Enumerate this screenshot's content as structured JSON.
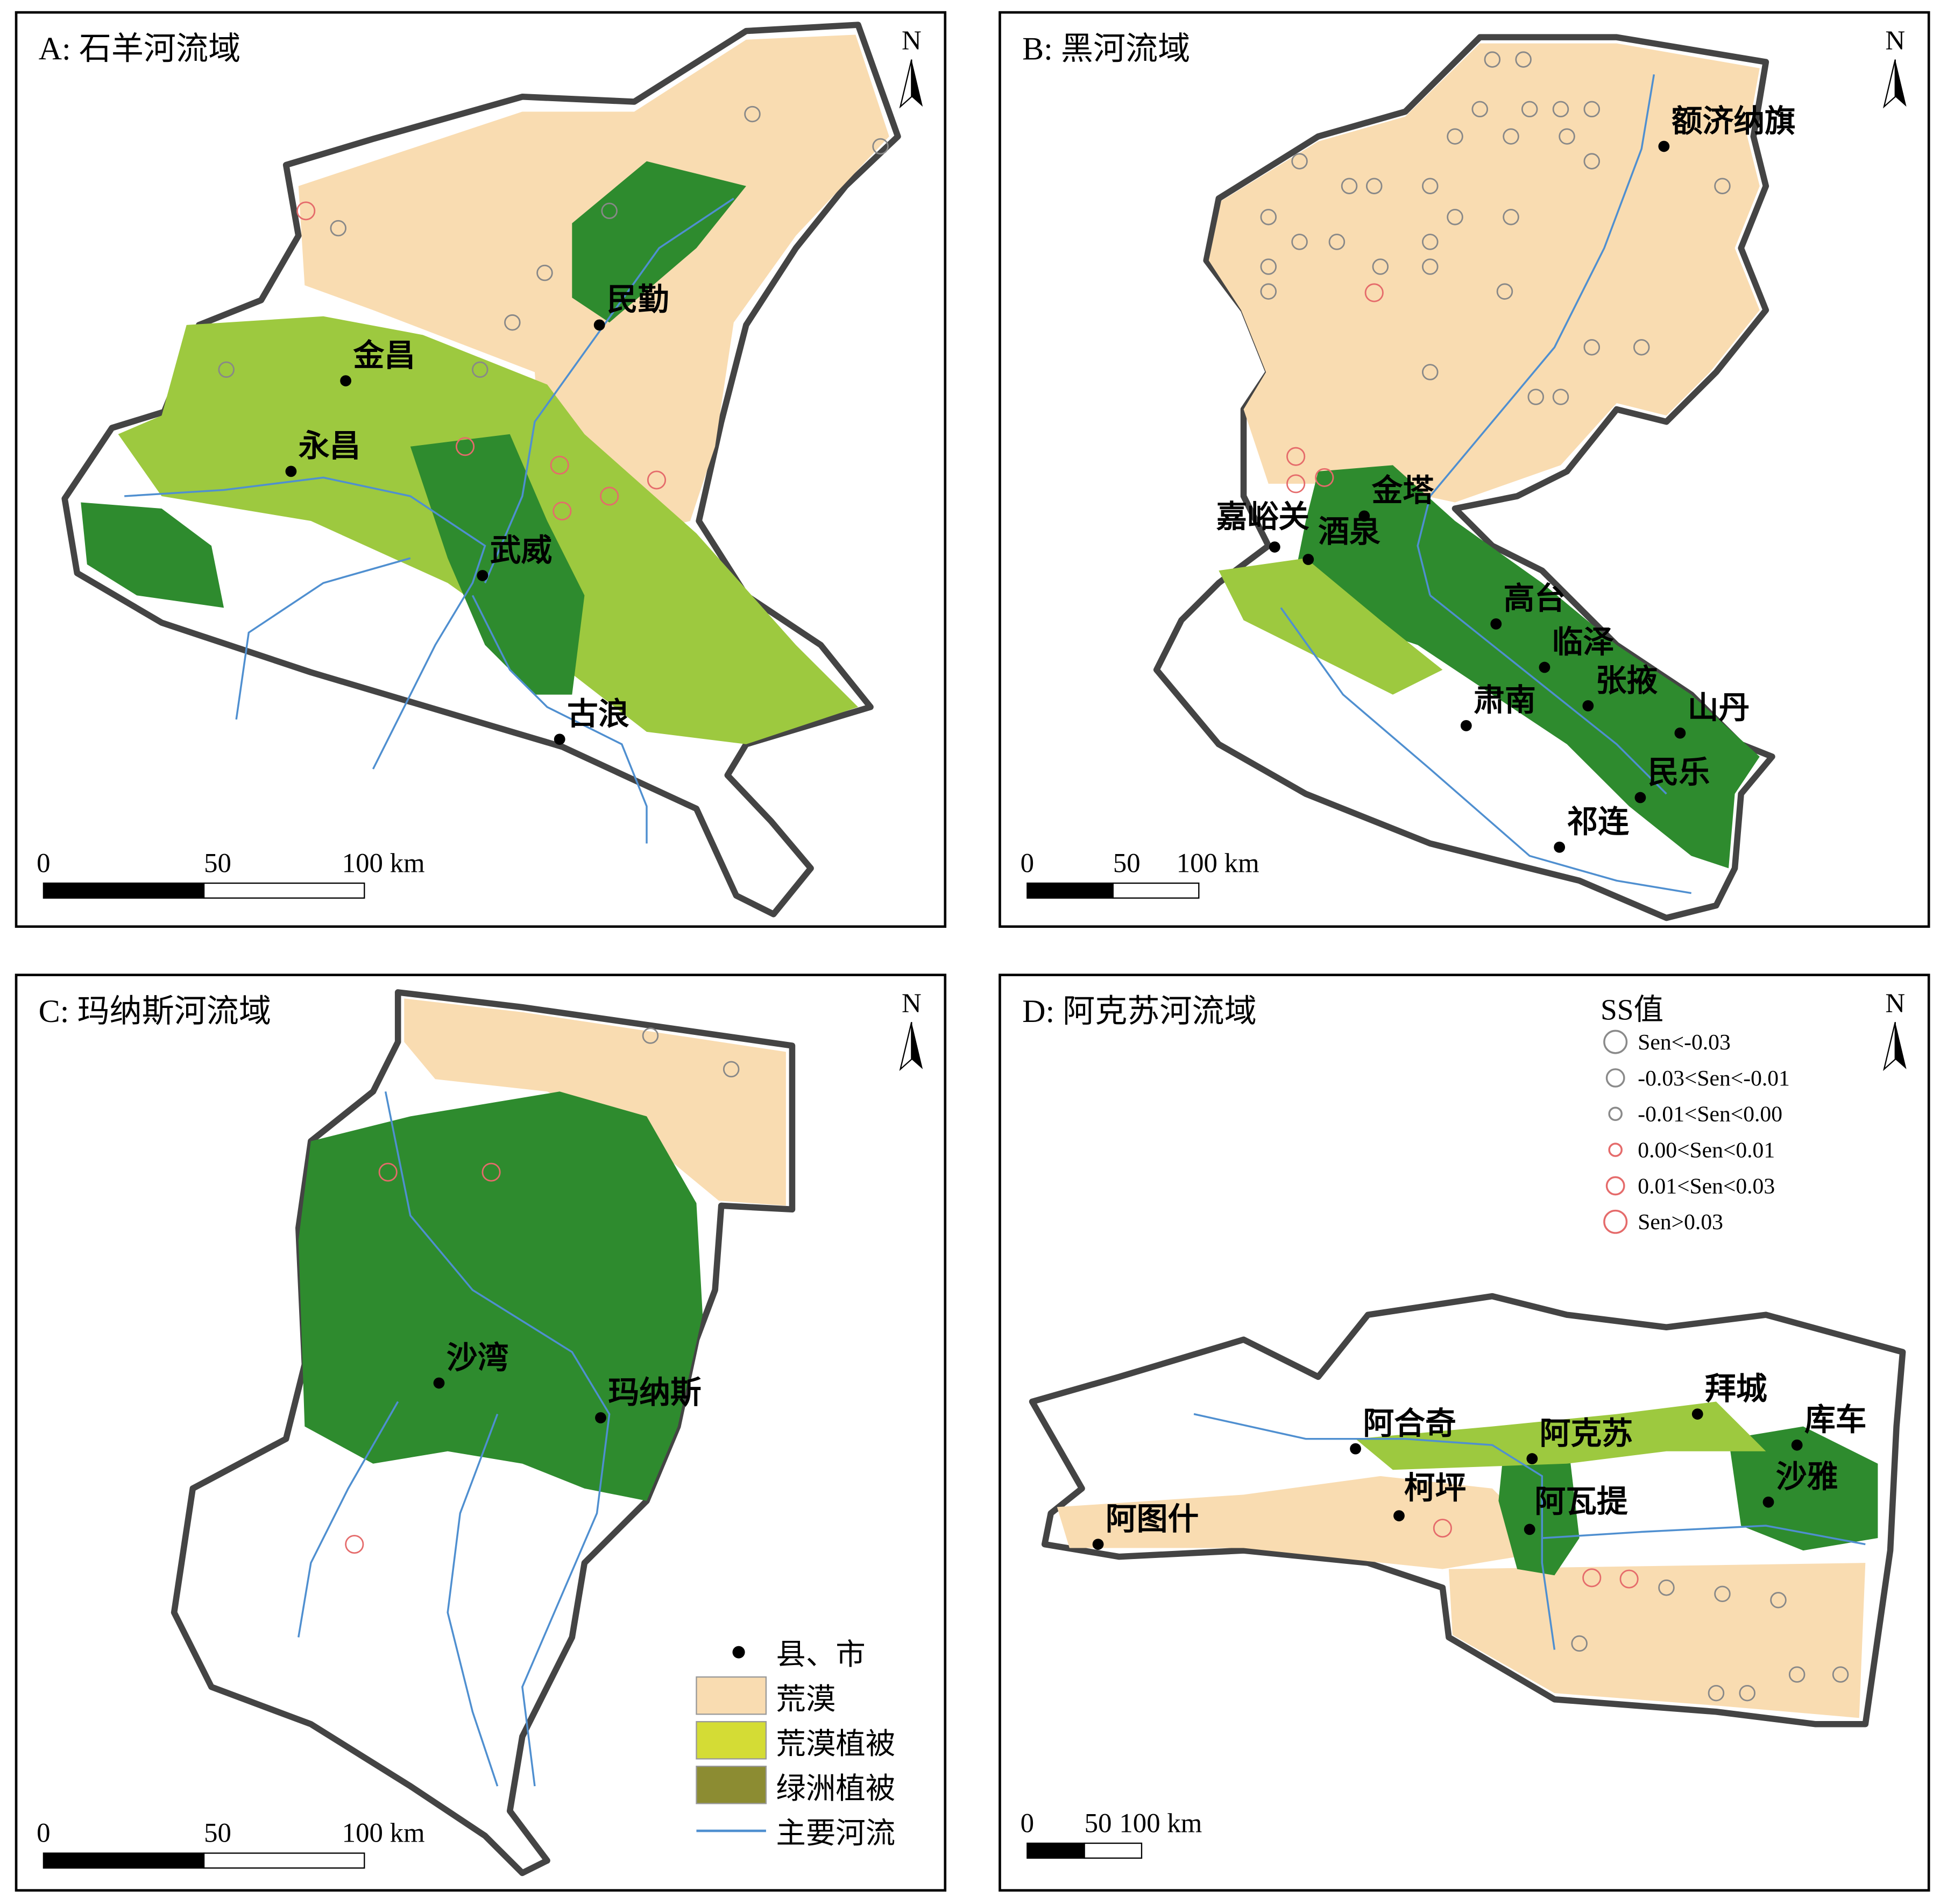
{
  "panels": [
    {
      "title": "A: 石羊河流域",
      "north": "N",
      "scale_labels": [
        "0",
        "50",
        "100 km"
      ],
      "cities": [
        "民勤",
        "金昌",
        "永昌",
        "武威",
        "古浪"
      ]
    },
    {
      "title": "B: 黑河流域",
      "north": "N",
      "scale_labels": [
        "0",
        "50",
        "100 km"
      ],
      "cities": [
        "额济纳旗",
        "金塔",
        "嘉峪关",
        "酒泉",
        "高台",
        "临泽",
        "张掖",
        "肃南",
        "山丹",
        "民乐",
        "祁连"
      ]
    },
    {
      "title": "C: 玛纳斯河流域",
      "north": "N",
      "scale_labels": [
        "0",
        "50",
        "100 km"
      ],
      "cities": [
        "沙湾",
        "玛纳斯"
      ]
    },
    {
      "title": "D: 阿克苏河流域",
      "north": "N",
      "scale_labels": [
        "0",
        "50",
        "100 km"
      ],
      "cities": [
        "拜城",
        "库车",
        "阿合奇",
        "阿克苏",
        "柯坪",
        "沙雅",
        "阿瓦提",
        "阿图什"
      ]
    }
  ],
  "legend": {
    "items": [
      {
        "label": "县、市",
        "color": "#000000"
      },
      {
        "label": "荒漠",
        "color": "#f9dcb1"
      },
      {
        "label": "荒漠植被",
        "color": "#d4dc35"
      },
      {
        "label": "绿洲植被",
        "color": "#8c8c32"
      },
      {
        "label": "主要河流",
        "color": "#4f8fd0"
      }
    ]
  },
  "ss_legend": {
    "title": "SS值",
    "items": [
      {
        "label": "Sen<-0.03",
        "color": "#8a8a8a"
      },
      {
        "label": "-0.03<Sen<-0.01",
        "color": "#8a8a8a"
      },
      {
        "label": "-0.01<Sen<0.00",
        "color": "#8a8a8a"
      },
      {
        "label": "0.00<Sen<0.01",
        "color": "#e56b6b"
      },
      {
        "label": "0.01<Sen<0.03",
        "color": "#e56b6b"
      },
      {
        "label": "Sen>0.03",
        "color": "#e56b6b"
      }
    ]
  }
}
